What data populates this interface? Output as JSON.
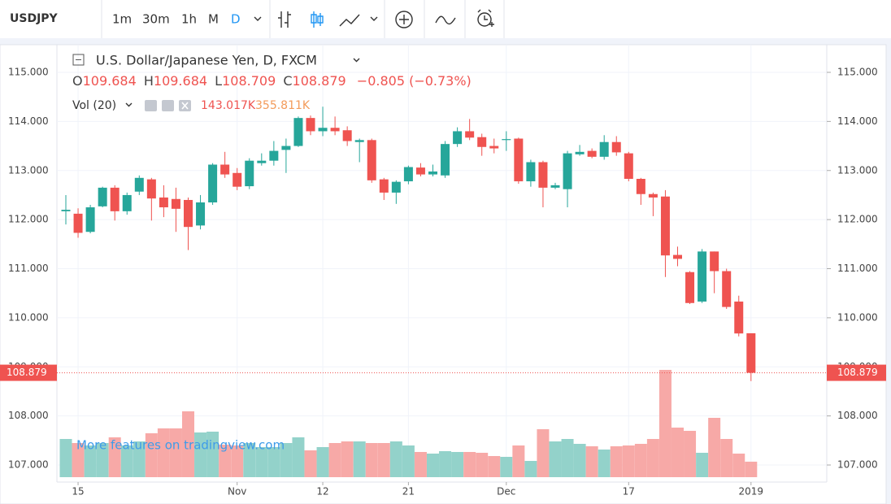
{
  "toolbar": {
    "symbol": "USDJPY",
    "intervals": [
      "1m",
      "30m",
      "1h",
      "M",
      "D"
    ]
  },
  "legend": {
    "title": "U.S. Dollar/Japanese Yen, D, FXCM",
    "ohlc": [
      {
        "label": "O",
        "value": "109.684"
      },
      {
        "label": "H",
        "value": "109.684"
      },
      {
        "label": "L",
        "value": "108.709"
      },
      {
        "label": "C",
        "value": "108.879"
      }
    ],
    "change": "−0.805 (−0.73%)",
    "volume_title": "Vol (20)",
    "volume_value": "143.017K",
    "volume_ma": "355.811K"
  },
  "watermark": "More features on tradingview.com",
  "chart_data": {
    "type": "candlestick",
    "categories": [
      null,
      "15",
      null,
      null,
      null,
      null,
      null,
      null,
      null,
      null,
      null,
      null,
      null,
      null,
      "Nov",
      null,
      null,
      null,
      null,
      null,
      null,
      "12",
      null,
      null,
      null,
      null,
      null,
      null,
      "21",
      null,
      null,
      null,
      null,
      null,
      null,
      null,
      "Dec",
      null,
      null,
      null,
      null,
      null,
      null,
      null,
      null,
      null,
      "17",
      null,
      null,
      null,
      null,
      null,
      null,
      null,
      null,
      null,
      "2019"
    ],
    "open": [
      112.17,
      112.12,
      111.75,
      112.27,
      112.65,
      112.17,
      112.57,
      112.82,
      112.45,
      112.42,
      112.4,
      111.88,
      112.35,
      113.12,
      112.95,
      112.68,
      113.15,
      113.2,
      113.42,
      113.5,
      114.07,
      113.8,
      113.87,
      113.82,
      113.58,
      113.62,
      112.82,
      112.55,
      112.78,
      113.06,
      112.92,
      112.9,
      113.54,
      113.8,
      113.68,
      113.5,
      113.62,
      113.65,
      112.78,
      113.17,
      112.65,
      112.62,
      113.33,
      113.4,
      113.28,
      113.58,
      113.35,
      112.83,
      112.52,
      112.47,
      111.28,
      110.93,
      110.33,
      111.35,
      110.95,
      110.33,
      109.684
    ],
    "high": [
      112.5,
      112.23,
      112.3,
      112.67,
      112.7,
      112.55,
      112.9,
      112.85,
      112.7,
      112.65,
      112.45,
      112.5,
      113.15,
      113.38,
      113.05,
      113.25,
      113.35,
      113.6,
      113.65,
      114.1,
      114.12,
      114.3,
      114.1,
      113.9,
      113.65,
      113.65,
      112.85,
      112.8,
      113.1,
      113.15,
      113.12,
      113.6,
      113.88,
      114.05,
      113.75,
      113.65,
      113.8,
      113.67,
      113.22,
      113.2,
      112.75,
      113.4,
      113.52,
      113.45,
      113.72,
      113.7,
      113.38,
      112.85,
      112.55,
      112.6,
      111.45,
      110.95,
      111.4,
      111.35,
      111.0,
      110.45,
      109.684
    ],
    "low": [
      111.9,
      111.63,
      111.72,
      112.25,
      111.98,
      112.1,
      112.5,
      111.98,
      112.05,
      111.75,
      111.38,
      111.8,
      112.3,
      112.85,
      112.6,
      112.62,
      113.1,
      113.1,
      112.95,
      113.48,
      113.72,
      113.7,
      113.72,
      113.5,
      113.17,
      112.75,
      112.4,
      112.32,
      112.72,
      112.88,
      112.88,
      112.85,
      113.48,
      113.62,
      113.3,
      113.35,
      113.4,
      112.73,
      112.67,
      112.25,
      112.62,
      112.25,
      113.3,
      113.25,
      113.22,
      113.3,
      112.78,
      112.3,
      112.07,
      110.83,
      111.05,
      110.28,
      110.3,
      110.5,
      110.18,
      109.62,
      108.709
    ],
    "close": [
      112.2,
      111.73,
      112.25,
      112.65,
      112.17,
      112.5,
      112.85,
      112.43,
      112.25,
      112.22,
      111.85,
      112.35,
      113.12,
      112.92,
      112.67,
      113.2,
      113.2,
      113.4,
      113.5,
      114.07,
      113.8,
      113.87,
      113.8,
      113.6,
      113.62,
      112.8,
      112.55,
      112.77,
      113.07,
      112.92,
      112.98,
      113.54,
      113.8,
      113.67,
      113.48,
      113.45,
      113.64,
      112.78,
      113.17,
      112.65,
      112.7,
      113.35,
      113.38,
      113.28,
      113.58,
      113.37,
      112.83,
      112.52,
      112.45,
      111.27,
      111.2,
      110.3,
      111.35,
      110.95,
      110.22,
      109.68,
      108.879
    ],
    "volume": [
      352500,
      315000,
      292500,
      315000,
      367500,
      292500,
      330000,
      405000,
      450000,
      450000,
      607500,
      412500,
      420000,
      300000,
      292500,
      315000,
      277500,
      277500,
      315000,
      367500,
      247500,
      277500,
      315000,
      330000,
      330000,
      315000,
      315000,
      330000,
      292500,
      232500,
      217500,
      240000,
      232500,
      232500,
      225000,
      195000,
      187500,
      292500,
      150000,
      442500,
      330000,
      352500,
      307500,
      285000,
      255000,
      285000,
      292500,
      307500,
      352500,
      990000,
      457500,
      427500,
      225000,
      547500,
      352500,
      217500,
      143017
    ],
    "ylim": [
      106.752,
      115.563
    ],
    "yticks": [
      {
        "value": 107,
        "label": "107.000"
      },
      {
        "value": 108,
        "label": "108.000"
      },
      {
        "value": 109,
        "label": "109.000"
      },
      {
        "value": 110,
        "label": "110.000"
      },
      {
        "value": 111,
        "label": "111.000"
      },
      {
        "value": 112,
        "label": "112.000"
      },
      {
        "value": 113,
        "label": "113.000"
      },
      {
        "value": 114,
        "label": "114.000"
      },
      {
        "value": 115,
        "label": "115.000"
      }
    ],
    "grid": true,
    "up_color": "#26a69a",
    "down_color": "#ef5350",
    "up_volume_color": "#93d2ca",
    "down_volume_color": "#f7a9a7"
  }
}
